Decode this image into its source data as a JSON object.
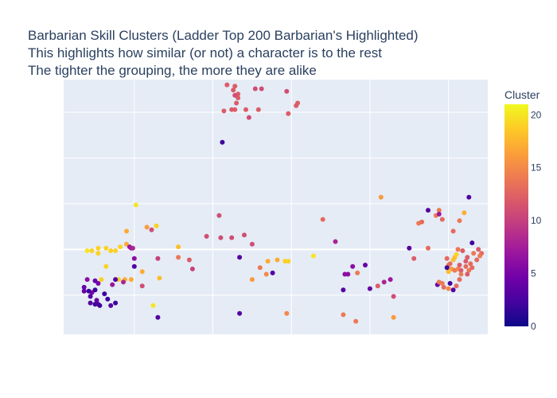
{
  "chart_data": {
    "type": "scatter",
    "title_lines": [
      "Barbarian Skill Clusters (Ladder Top 200 Barbarian's Highlighted)",
      "This highlights how similar (or not) a character is to the rest",
      "The tighter the grouping, the more they are alike"
    ],
    "xlabel": "",
    "ylabel": "",
    "xlim": [
      -11,
      16
    ],
    "ylim": [
      -6.5,
      13
    ],
    "x_gridlines": [
      -6.5,
      -1.5,
      3.5,
      8.5,
      13.5
    ],
    "y_gridlines": [
      -3.5,
      0,
      3.5,
      7,
      10.5
    ],
    "show_tick_labels": false,
    "grid": true,
    "colorbar": {
      "title": "Cluster",
      "min": 0,
      "max": 21,
      "ticks": [
        0,
        5,
        10,
        15,
        20
      ],
      "colorscale": [
        "#0d0887",
        "#46039f",
        "#7201a8",
        "#9c179e",
        "#bd3786",
        "#d8576b",
        "#ed7953",
        "#fb9f3a",
        "#fdca26",
        "#f0f921"
      ],
      "placement": "right"
    },
    "points": [
      {
        "x": -0.6,
        "y": 12.6,
        "c": 12
      },
      {
        "x": -0.1,
        "y": 12.5,
        "c": 12
      },
      {
        "x": -0.2,
        "y": 12.2,
        "c": 12
      },
      {
        "x": 0.1,
        "y": 11.9,
        "c": 12
      },
      {
        "x": 0.1,
        "y": 11.6,
        "c": 12
      },
      {
        "x": -0.1,
        "y": 11.8,
        "c": 11
      },
      {
        "x": 0.0,
        "y": 11.2,
        "c": 12
      },
      {
        "x": 1.2,
        "y": 12.3,
        "c": 11
      },
      {
        "x": 1.6,
        "y": 12.3,
        "c": 11
      },
      {
        "x": 3.2,
        "y": 12.1,
        "c": 11
      },
      {
        "x": 3.9,
        "y": 11.2,
        "c": 12
      },
      {
        "x": 3.8,
        "y": 11.0,
        "c": 12
      },
      {
        "x": -0.8,
        "y": 10.6,
        "c": 12
      },
      {
        "x": -0.3,
        "y": 10.7,
        "c": 12
      },
      {
        "x": -0.1,
        "y": 10.7,
        "c": 12
      },
      {
        "x": 0.6,
        "y": 10.7,
        "c": 12
      },
      {
        "x": 1.4,
        "y": 10.7,
        "c": 12
      },
      {
        "x": 3.3,
        "y": 10.4,
        "c": 12
      },
      {
        "x": 0.8,
        "y": 10.1,
        "c": 11
      },
      {
        "x": -0.9,
        "y": 8.2,
        "c": 2
      },
      {
        "x": -6.4,
        "y": 3.4,
        "c": 20
      },
      {
        "x": -5.7,
        "y": 1.7,
        "c": 16
      },
      {
        "x": -5.1,
        "y": 1.8,
        "c": 19
      },
      {
        "x": -7.0,
        "y": 1.4,
        "c": 17
      },
      {
        "x": -7.0,
        "y": 0.4,
        "c": 17
      },
      {
        "x": -8.3,
        "y": 0.1,
        "c": 19
      },
      {
        "x": -8.8,
        "y": 0.1,
        "c": 19
      },
      {
        "x": -8.0,
        "y": -0.1,
        "c": 19
      },
      {
        "x": -7.7,
        "y": -0.1,
        "c": 19
      },
      {
        "x": -7.4,
        "y": 0.2,
        "c": 19
      },
      {
        "x": -9.2,
        "y": -0.1,
        "c": 19
      },
      {
        "x": -9.5,
        "y": -0.1,
        "c": 20
      },
      {
        "x": -8.8,
        "y": -0.3,
        "c": 19
      },
      {
        "x": -6.0,
        "y": -1.7,
        "c": 17
      },
      {
        "x": -3.7,
        "y": 0.2,
        "c": 18
      },
      {
        "x": -8.6,
        "y": -2.3,
        "c": 19
      },
      {
        "x": -7.5,
        "y": -2.3,
        "c": 19
      },
      {
        "x": -6.7,
        "y": -2.3,
        "c": 17
      },
      {
        "x": -7.1,
        "y": -2.3,
        "c": 17
      },
      {
        "x": -4.9,
        "y": -2.2,
        "c": 18
      },
      {
        "x": -6.0,
        "y": -2.8,
        "c": 11
      },
      {
        "x": -8.3,
        "y": -1.3,
        "c": 19
      },
      {
        "x": -5.3,
        "y": -4.3,
        "c": 20
      },
      {
        "x": -7.2,
        "y": -2.5,
        "c": 8
      },
      {
        "x": -7.7,
        "y": -4.1,
        "c": 2
      },
      {
        "x": -8.2,
        "y": -3.8,
        "c": 2
      },
      {
        "x": -9.5,
        "y": -2.3,
        "c": 6
      },
      {
        "x": -9.2,
        "y": -3.3,
        "c": 5
      },
      {
        "x": -9.7,
        "y": -2.9,
        "c": 4
      },
      {
        "x": -9.7,
        "y": -3.2,
        "c": 4
      },
      {
        "x": -9.4,
        "y": -3.2,
        "c": 2
      },
      {
        "x": -9.0,
        "y": -3.1,
        "c": 2
      },
      {
        "x": -9.3,
        "y": -3.6,
        "c": 3
      },
      {
        "x": -8.9,
        "y": -3.9,
        "c": 4
      },
      {
        "x": -9.0,
        "y": -4.2,
        "c": 2
      },
      {
        "x": -9.3,
        "y": -4.1,
        "c": 3
      },
      {
        "x": -8.8,
        "y": -4.2,
        "c": 3
      },
      {
        "x": -8.7,
        "y": -4.3,
        "c": 2
      },
      {
        "x": -8.0,
        "y": -4.3,
        "c": 3
      },
      {
        "x": -8.8,
        "y": -2.6,
        "c": 5
      },
      {
        "x": -9.0,
        "y": -2.4,
        "c": 4
      },
      {
        "x": -8.4,
        "y": -3.4,
        "c": 2
      },
      {
        "x": -7.7,
        "y": -2.3,
        "c": 3
      },
      {
        "x": -7.9,
        "y": -2.7,
        "c": 7
      },
      {
        "x": -6.5,
        "y": -0.7,
        "c": 6
      },
      {
        "x": -6.5,
        "y": -1.3,
        "c": 3
      },
      {
        "x": -6.7,
        "y": 0.1,
        "c": 7
      },
      {
        "x": -6.8,
        "y": 0.2,
        "c": 7
      },
      {
        "x": -6.6,
        "y": 0.1,
        "c": 8
      },
      {
        "x": -5.0,
        "y": -5.2,
        "c": 3
      },
      {
        "x": -5.4,
        "y": 1.5,
        "c": 11
      },
      {
        "x": -3.0,
        "y": -0.8,
        "c": 12
      },
      {
        "x": -2.8,
        "y": -1.5,
        "c": 10
      },
      {
        "x": -1.1,
        "y": 2.6,
        "c": 11
      },
      {
        "x": -1.0,
        "y": 0.9,
        "c": 11
      },
      {
        "x": -0.3,
        "y": 0.9,
        "c": 11
      },
      {
        "x": 0.5,
        "y": 1.1,
        "c": 11
      },
      {
        "x": 1.0,
        "y": 0.4,
        "c": 11
      },
      {
        "x": -3.7,
        "y": -0.6,
        "c": 14
      },
      {
        "x": -1.9,
        "y": 1.0,
        "c": 11
      },
      {
        "x": -5.0,
        "y": -0.7,
        "c": 10
      },
      {
        "x": 0.2,
        "y": -0.6,
        "c": 3
      },
      {
        "x": 2.3,
        "y": -1.8,
        "c": 3
      },
      {
        "x": 0.2,
        "y": -4.9,
        "c": 3
      },
      {
        "x": 2.0,
        "y": -0.9,
        "c": 17
      },
      {
        "x": 2.6,
        "y": -0.8,
        "c": 17
      },
      {
        "x": 3.1,
        "y": -0.9,
        "c": 19
      },
      {
        "x": 3.3,
        "y": -0.9,
        "c": 19
      },
      {
        "x": 1.5,
        "y": -1.4,
        "c": 14
      },
      {
        "x": 1.9,
        "y": -1.9,
        "c": 15
      },
      {
        "x": 1.0,
        "y": -2.3,
        "c": 16
      },
      {
        "x": 3.2,
        "y": -4.9,
        "c": 15
      },
      {
        "x": 5.5,
        "y": 2.3,
        "c": 13
      },
      {
        "x": 4.9,
        "y": -0.5,
        "c": 20
      },
      {
        "x": 6.3,
        "y": 0.6,
        "c": 8
      },
      {
        "x": 7.4,
        "y": -1.3,
        "c": 6
      },
      {
        "x": 7.1,
        "y": -1.9,
        "c": 6
      },
      {
        "x": 6.9,
        "y": -1.9,
        "c": 6
      },
      {
        "x": 8.2,
        "y": -1.2,
        "c": 4
      },
      {
        "x": 9.4,
        "y": -2.5,
        "c": 8
      },
      {
        "x": 9.8,
        "y": -2.3,
        "c": 7
      },
      {
        "x": 6.8,
        "y": -3.1,
        "c": 3
      },
      {
        "x": 8.5,
        "y": -3.0,
        "c": 4
      },
      {
        "x": 7.7,
        "y": -1.8,
        "c": 14
      },
      {
        "x": 9.0,
        "y": -2.8,
        "c": 12
      },
      {
        "x": 10.0,
        "y": -3.6,
        "c": 11
      },
      {
        "x": 9.2,
        "y": 4.0,
        "c": 16
      },
      {
        "x": 6.8,
        "y": -5.0,
        "c": 14
      },
      {
        "x": 7.6,
        "y": -5.5,
        "c": 14
      },
      {
        "x": 10.0,
        "y": -5.2,
        "c": 16
      },
      {
        "x": 11.0,
        "y": 0.1,
        "c": 3
      },
      {
        "x": 11.6,
        "y": 2.0,
        "c": 14
      },
      {
        "x": 11.8,
        "y": 2.1,
        "c": 13
      },
      {
        "x": 11.3,
        "y": -0.7,
        "c": 12
      },
      {
        "x": 12.2,
        "y": 0.1,
        "c": 13
      },
      {
        "x": 12.7,
        "y": 2.6,
        "c": 14
      },
      {
        "x": 12.9,
        "y": 3.0,
        "c": 14
      },
      {
        "x": 13.1,
        "y": 2.3,
        "c": 13
      },
      {
        "x": 12.2,
        "y": 3.0,
        "c": 3
      },
      {
        "x": 12.9,
        "y": 2.7,
        "c": 7
      },
      {
        "x": 13.4,
        "y": -0.7,
        "c": 13
      },
      {
        "x": 13.8,
        "y": 1.4,
        "c": 13
      },
      {
        "x": 14.2,
        "y": 2.2,
        "c": 14
      },
      {
        "x": 14.5,
        "y": 2.8,
        "c": 17
      },
      {
        "x": 14.1,
        "y": 0.0,
        "c": 14
      },
      {
        "x": 14.8,
        "y": 4.0,
        "c": 3
      },
      {
        "x": 15.0,
        "y": 0.5,
        "c": 2
      },
      {
        "x": 13.5,
        "y": -1.2,
        "c": 14
      },
      {
        "x": 13.6,
        "y": -1.1,
        "c": 13
      },
      {
        "x": 13.9,
        "y": -0.6,
        "c": 18
      },
      {
        "x": 13.8,
        "y": -0.8,
        "c": 18
      },
      {
        "x": 14.0,
        "y": -0.4,
        "c": 19
      },
      {
        "x": 13.7,
        "y": -1.5,
        "c": 16
      },
      {
        "x": 13.5,
        "y": -1.7,
        "c": 18
      },
      {
        "x": 13.9,
        "y": -1.6,
        "c": 14
      },
      {
        "x": 14.1,
        "y": -1.5,
        "c": 15
      },
      {
        "x": 14.3,
        "y": -1.6,
        "c": 12
      },
      {
        "x": 14.6,
        "y": -1.3,
        "c": 13
      },
      {
        "x": 14.9,
        "y": -1.1,
        "c": 13
      },
      {
        "x": 14.6,
        "y": -0.9,
        "c": 12
      },
      {
        "x": 14.2,
        "y": -1.2,
        "c": 12
      },
      {
        "x": 14.8,
        "y": -1.6,
        "c": 14
      },
      {
        "x": 15.0,
        "y": -1.4,
        "c": 13
      },
      {
        "x": 15.3,
        "y": -0.8,
        "c": 13
      },
      {
        "x": 15.6,
        "y": -0.3,
        "c": 13
      },
      {
        "x": 15.5,
        "y": -0.5,
        "c": 14
      },
      {
        "x": 15.1,
        "y": -0.3,
        "c": 14
      },
      {
        "x": 14.7,
        "y": -0.6,
        "c": 12
      },
      {
        "x": 14.4,
        "y": -0.1,
        "c": 12
      },
      {
        "x": 15.4,
        "y": 0.0,
        "c": 12
      },
      {
        "x": 13.4,
        "y": -1.4,
        "c": 2
      },
      {
        "x": 12.8,
        "y": -2.7,
        "c": 4
      },
      {
        "x": 13.2,
        "y": -2.9,
        "c": 13
      },
      {
        "x": 13.5,
        "y": -3.0,
        "c": 15
      },
      {
        "x": 13.1,
        "y": -2.6,
        "c": 14
      },
      {
        "x": 12.9,
        "y": -2.5,
        "c": 14
      },
      {
        "x": 14.3,
        "y": -1.9,
        "c": 14
      },
      {
        "x": 13.8,
        "y": -3.1,
        "c": 3
      },
      {
        "x": 14.0,
        "y": -2.8,
        "c": 13
      },
      {
        "x": 14.7,
        "y": -1.9,
        "c": 12
      },
      {
        "x": 14.2,
        "y": -2.3,
        "c": 13
      },
      {
        "x": 13.6,
        "y": -2.6,
        "c": 2
      }
    ]
  }
}
